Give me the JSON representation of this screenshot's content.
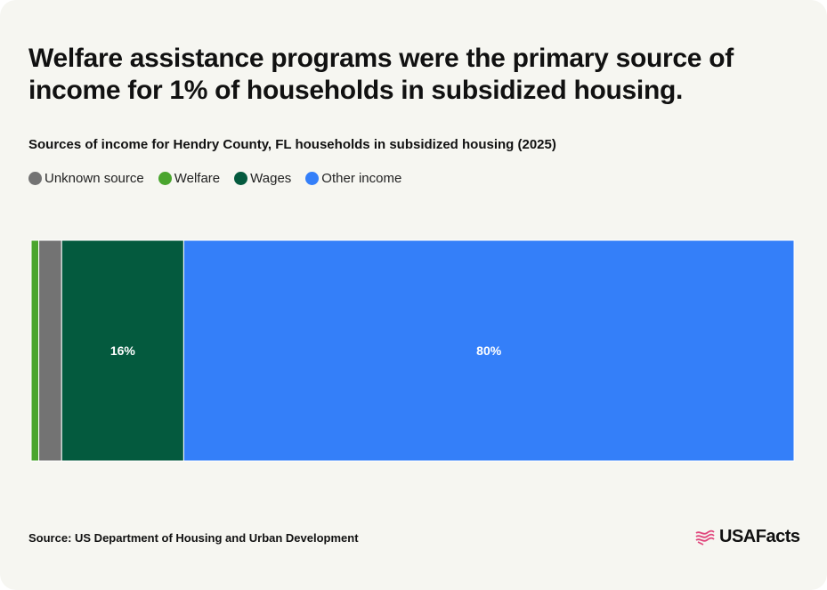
{
  "header": {
    "title": "Welfare assistance programs were the primary source of income for 1% of households in subsidized housing.",
    "subtitle": "Sources of income for Hendry County, FL households in subsidized housing (2025)"
  },
  "legend": [
    {
      "label": "Unknown source",
      "color": "#737373"
    },
    {
      "label": "Welfare",
      "color": "#4aa52e"
    },
    {
      "label": "Wages",
      "color": "#045a3e"
    },
    {
      "label": "Other income",
      "color": "#347ff9"
    }
  ],
  "chart_data": {
    "type": "bar",
    "orientation": "horizontal-stacked",
    "categories": [
      "Hendry County, FL"
    ],
    "series": [
      {
        "name": "Welfare",
        "values": [
          1
        ],
        "color": "#4aa52e",
        "label": ""
      },
      {
        "name": "Unknown source",
        "values": [
          3
        ],
        "color": "#737373",
        "label": ""
      },
      {
        "name": "Wages",
        "values": [
          16
        ],
        "color": "#045a3e",
        "label": "16%"
      },
      {
        "name": "Other income",
        "values": [
          80
        ],
        "color": "#347ff9",
        "label": "80%"
      }
    ],
    "xlim": [
      0,
      100
    ],
    "grid": false,
    "legend_position": "top-left"
  },
  "footer": {
    "source": "Source: US Department of Housing and Urban Development",
    "brand": "USAFacts"
  },
  "icons": {
    "brand_logo": "usafacts-flag-icon"
  }
}
